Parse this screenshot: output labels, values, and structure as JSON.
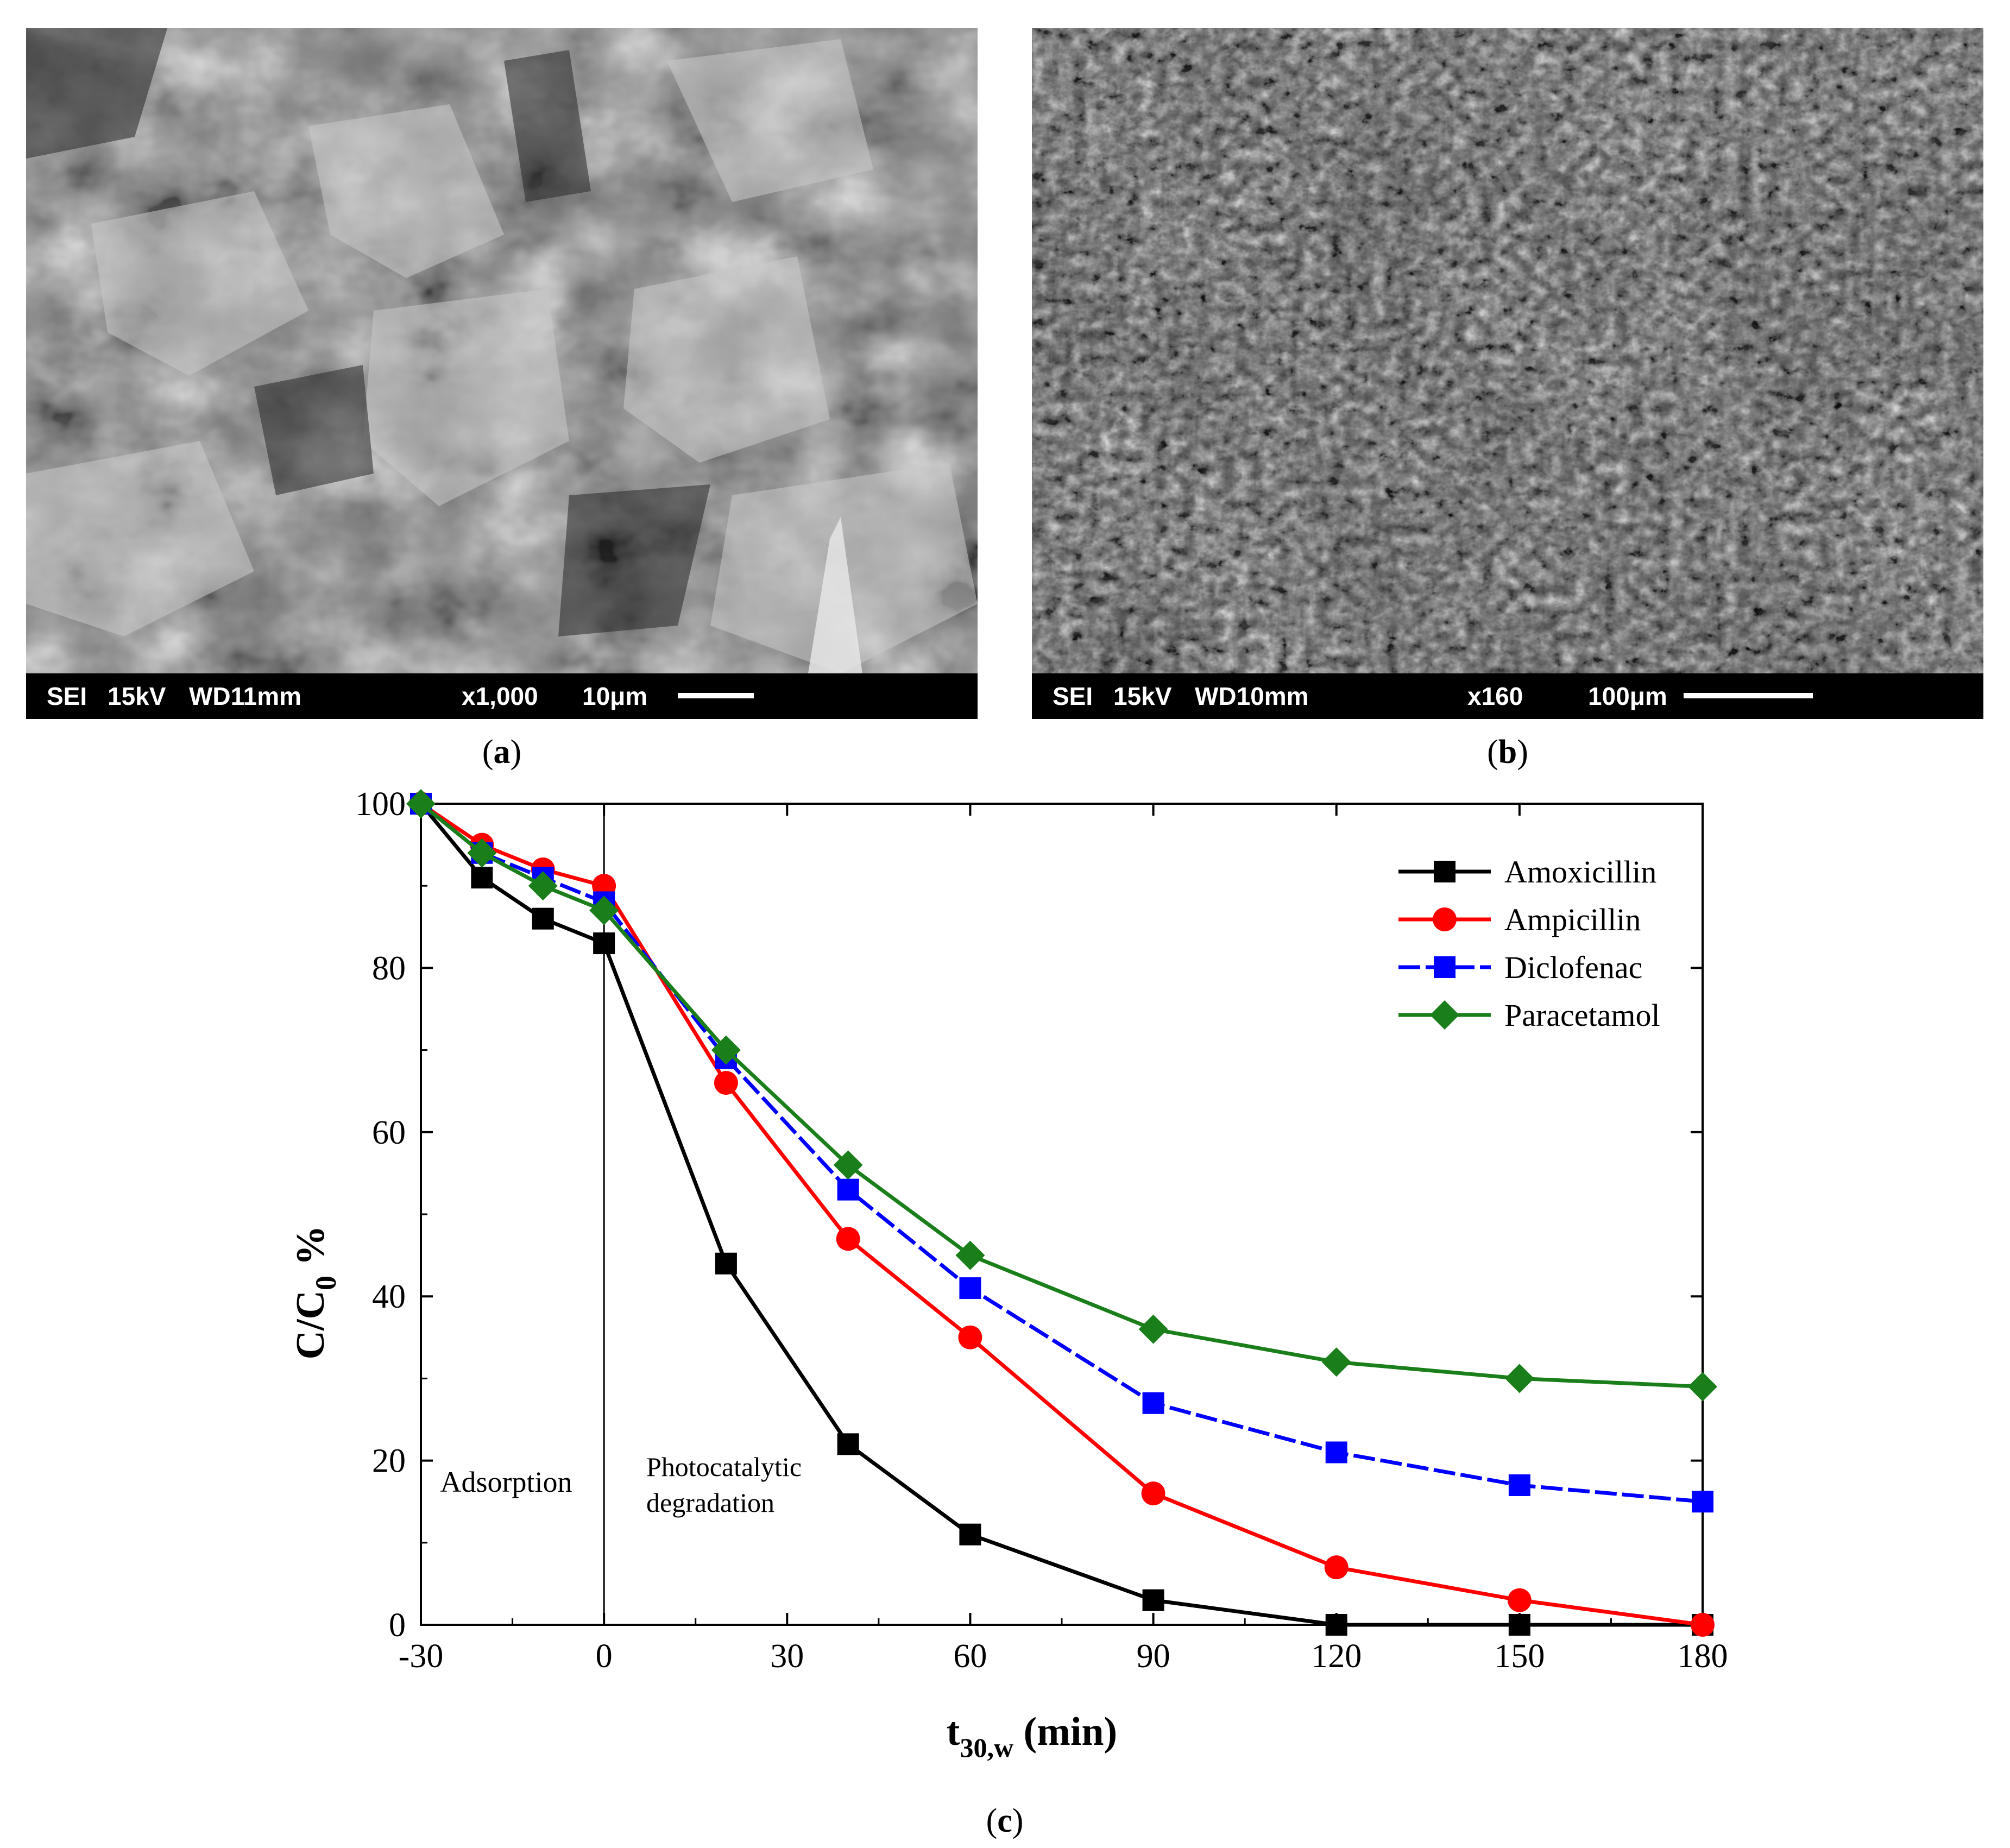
{
  "figure": {
    "panel_a": {
      "label_open": "(",
      "label_letter": "a",
      "label_close": ")",
      "sem_info": {
        "mode": "SEI",
        "voltage": "15kV",
        "working_distance": "WD11mm",
        "magnification": "x1,000",
        "scale": "10μm"
      }
    },
    "panel_b": {
      "label_open": "(",
      "label_letter": "b",
      "label_close": ")",
      "sem_info": {
        "mode": "SEI",
        "voltage": "15kV",
        "working_distance": "WD10mm",
        "magnification": "x160",
        "scale": "100μm"
      }
    },
    "panel_c": {
      "label_open": "(",
      "label_letter": "c",
      "label_close": ")"
    }
  },
  "chart_data": {
    "type": "line",
    "xlabel_main": "t",
    "xlabel_sub": "30,w",
    "xlabel_unit": " (min)",
    "ylabel_main": "C/C",
    "ylabel_sub": "0",
    "ylabel_unit": " %",
    "xlim": [
      -30,
      180
    ],
    "ylim": [
      0,
      100
    ],
    "x_ticks": [
      -30,
      0,
      30,
      60,
      90,
      120,
      150,
      180
    ],
    "y_ticks": [
      0,
      20,
      40,
      60,
      80,
      100
    ],
    "divider_x": 0,
    "legend_position": "top-right",
    "annotations": {
      "adsorption": "Adsorption",
      "photo_line1": "Photocatalytic",
      "photo_line2": "degradation"
    },
    "x": [
      -30,
      -20,
      -10,
      0,
      20,
      40,
      60,
      90,
      120,
      150,
      180
    ],
    "series": [
      {
        "name": "Amoxicillin",
        "color": "#000000",
        "marker": "square",
        "values": [
          100,
          91,
          86,
          83,
          44,
          22,
          11,
          3,
          0,
          0,
          0
        ]
      },
      {
        "name": "Ampicillin",
        "color": "#ff0000",
        "marker": "circle",
        "values": [
          100,
          95,
          92,
          90,
          66,
          47,
          35,
          16,
          7,
          3,
          0
        ]
      },
      {
        "name": "Diclofenac",
        "color": "#0000ff",
        "marker": "square",
        "dash": true,
        "values": [
          100,
          94,
          91,
          88,
          69,
          53,
          41,
          27,
          21,
          17,
          15
        ]
      },
      {
        "name": "Paracetamol",
        "color": "#1a7f1a",
        "marker": "diamond",
        "values": [
          100,
          94,
          90,
          87,
          70,
          56,
          45,
          36,
          32,
          30,
          29
        ]
      }
    ]
  }
}
